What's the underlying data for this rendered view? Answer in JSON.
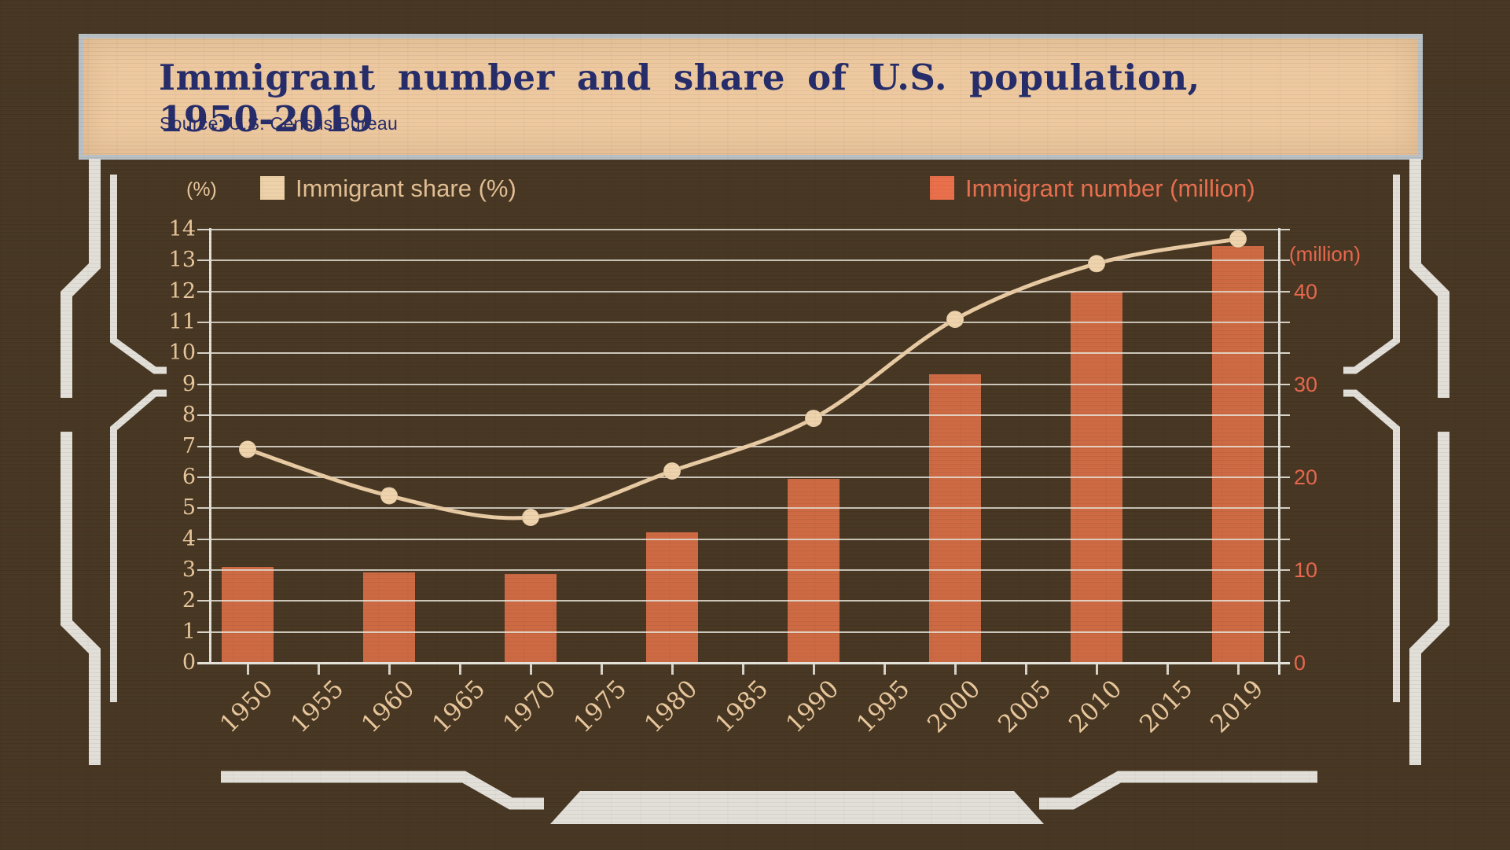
{
  "header": {
    "title": "Immigrant number and share of U.S. population, 1950-2019",
    "source": "Source: U.S. Census Bureau"
  },
  "legend": {
    "left_axis_unit": "(%)",
    "share_label": "Immigrant share (%)",
    "number_label": "Immigrant number (million)",
    "right_axis_unit": "(million)"
  },
  "chart_data": {
    "type": "bar+line",
    "title": "Immigrant number and share of U.S. population, 1950-2019",
    "categories": [
      "1950",
      "1955",
      "1960",
      "1965",
      "1970",
      "1975",
      "1980",
      "1985",
      "1990",
      "1995",
      "2000",
      "2005",
      "2010",
      "2015",
      "2019"
    ],
    "series": [
      {
        "name": "Immigrant number (million)",
        "type": "bar",
        "axis": "right",
        "x": [
          "1950",
          "1960",
          "1970",
          "1980",
          "1990",
          "2000",
          "2010",
          "2019"
        ],
        "values": [
          10.3,
          9.7,
          9.6,
          14.1,
          19.8,
          31.1,
          40.0,
          44.9
        ]
      },
      {
        "name": "Immigrant share (%)",
        "type": "line",
        "axis": "left",
        "x": [
          "1950",
          "1960",
          "1970",
          "1980",
          "1990",
          "2000",
          "2010",
          "2019"
        ],
        "values": [
          6.9,
          5.4,
          4.7,
          6.2,
          7.9,
          11.1,
          12.9,
          13.7
        ]
      }
    ],
    "left_axis": {
      "unit": "(%)",
      "min": 0,
      "max": 14,
      "step": 1
    },
    "right_axis": {
      "unit": "(million)",
      "labels": [
        0,
        10,
        20,
        30,
        40
      ],
      "aligned_with_left_values": [
        0,
        3,
        6,
        9,
        12
      ]
    },
    "grid": "on",
    "legend_position": "top",
    "colors": {
      "background": "#473723",
      "band": "#eec9a0",
      "title_text": "#262d6a",
      "bar": "#cd6a44",
      "line": "#e9cba4",
      "marker": "#eed3ac",
      "grid": "#e9e5db",
      "tan_text": "#e9c79c",
      "orange_text": "#e8684d",
      "frame": "#e2dfd8"
    }
  }
}
